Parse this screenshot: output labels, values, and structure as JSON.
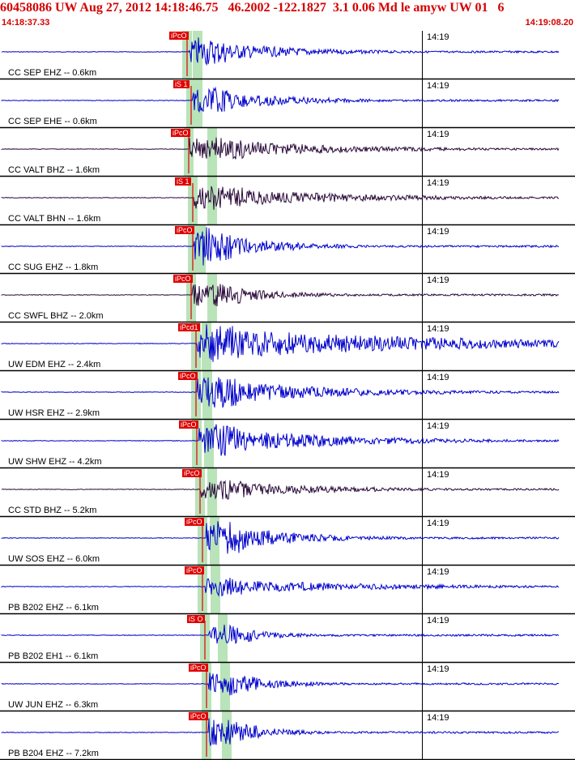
{
  "header": {
    "title": "60458086 UW Aug 27, 2012 14:18:46.75   46.2002 -122.1827  3.1 0.06 Md le amyw UW 01   6",
    "start_time": "14:18:37.33",
    "end_time": "14:19:08.20"
  },
  "minute_label": "14:19",
  "colors": {
    "blue": "#0000cc",
    "purple": "#2a0a3a",
    "pick": "#e00000",
    "band": "#b9e3b9",
    "title": "#d40000"
  },
  "traces": [
    {
      "label": "CC SEP EHZ -- 0.6km",
      "pick": "iPcO",
      "color": "blue"
    },
    {
      "label": "CC SEP EHE -- 0.6km",
      "pick": "iS 1",
      "color": "blue"
    },
    {
      "label": "CC VALT BHZ -- 1.6km",
      "pick": "iPcO",
      "color": "purple"
    },
    {
      "label": "CC VALT BHN -- 1.6km",
      "pick": "iS 1",
      "color": "purple"
    },
    {
      "label": "CC SUG EHZ -- 1.8km",
      "pick": "iPcO",
      "color": "blue"
    },
    {
      "label": "CC SWFL BHZ -- 2.0km",
      "pick": "iPcO",
      "color": "purple"
    },
    {
      "label": "UW EDM EHZ -- 2.4km",
      "pick": "iPcd1",
      "color": "blue"
    },
    {
      "label": "UW HSR EHZ -- 2.9km",
      "pick": "iPcO",
      "color": "blue"
    },
    {
      "label": "UW SHW EHZ -- 4.2km",
      "pick": "iPcO",
      "color": "blue"
    },
    {
      "label": "CC STD BHZ -- 5.2km",
      "pick": "iPcO",
      "color": "purple"
    },
    {
      "label": "UW SOS EHZ -- 6.0km",
      "pick": "iPcO",
      "color": "blue"
    },
    {
      "label": "PB B202 EHZ -- 6.1km",
      "pick": "iPcO",
      "color": "blue"
    },
    {
      "label": "PB B202 EH1 -- 6.1km",
      "pick": "iS O",
      "color": "blue"
    },
    {
      "label": "UW JUN EHZ -- 6.3km",
      "pick": "iPcO",
      "color": "blue"
    },
    {
      "label": "PB B204 EHZ -- 7.2km",
      "pick": "iPcO",
      "color": "blue"
    }
  ]
}
